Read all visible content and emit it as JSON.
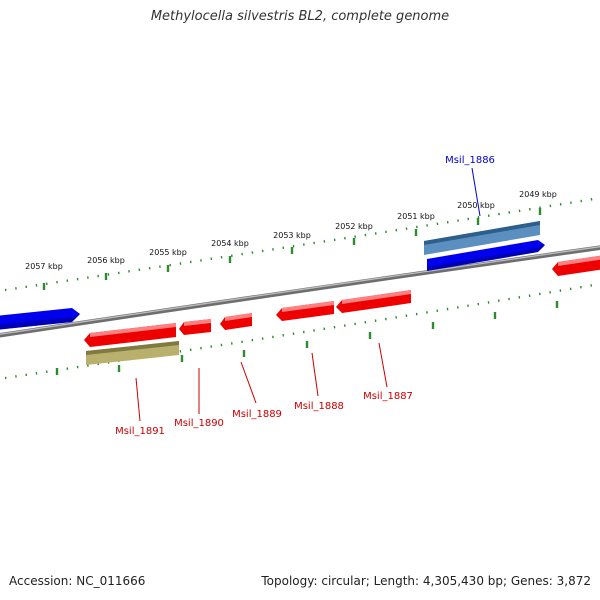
{
  "title": "Methylocella silvestris BL2, complete genome",
  "footer": {
    "accession": "Accession: NC_011666",
    "summary": "Topology: circular; Length: 4,305,430 bp; Genes: 3,872"
  },
  "colors": {
    "backbone": "#8a8a8a",
    "ruler": "#2e8b2e",
    "cds_forward": "#0000ee",
    "cds_forward_light": "#4f82b3",
    "cds_reverse": "#ee0000",
    "gene_label_forward": "#0000cc",
    "gene_label_reverse": "#cc0000",
    "rna": "#b8b06c"
  },
  "ruler_labels": [
    "2057 kbp",
    "2056 kbp",
    "2055 kbp",
    "2054 kbp",
    "2053 kbp",
    "2052 kbp",
    "2051 kbp",
    "2050 kbp",
    "2049 kbp"
  ],
  "gene_labels": {
    "forward": [
      "Msil_1886"
    ],
    "reverse": [
      "Msil_1891",
      "Msil_1890",
      "Msil_1889",
      "Msil_1888",
      "Msil_1887"
    ]
  }
}
